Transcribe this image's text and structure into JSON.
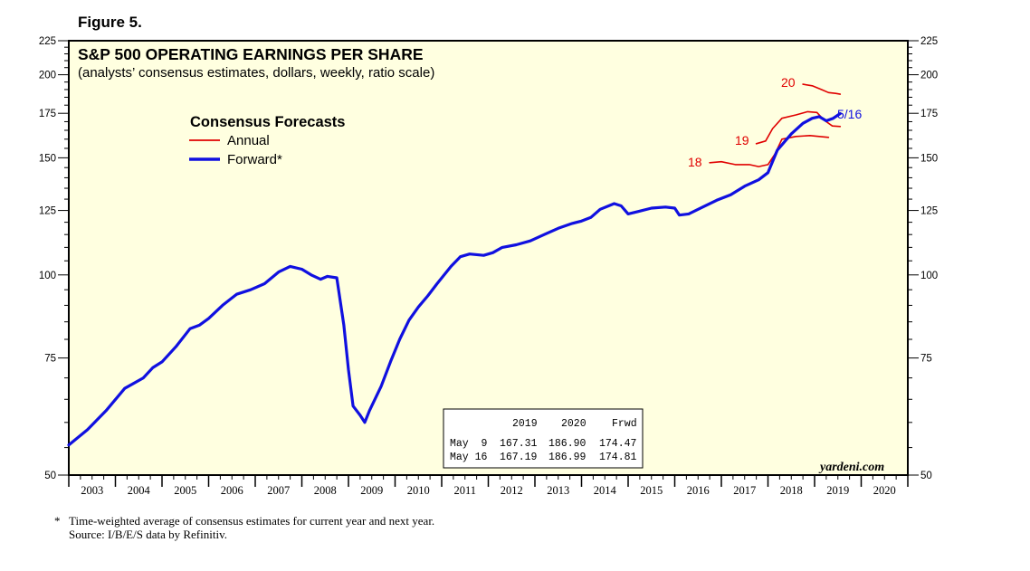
{
  "figure_label": "Figure 5.",
  "chart_data": {
    "type": "line",
    "title": "S&P 500 OPERATING EARNINGS PER SHARE",
    "subtitle": "(analysts’ consensus estimates, dollars, weekly, ratio scale)",
    "scale": "log",
    "ylim": [
      50,
      225
    ],
    "y_ticks": [
      50,
      75,
      100,
      125,
      150,
      175,
      200,
      225
    ],
    "x_range": [
      2003.0,
      2021.0
    ],
    "x_tick_labels": [
      "2003",
      "2004",
      "2005",
      "2006",
      "2007",
      "2008",
      "2009",
      "2010",
      "2011",
      "2012",
      "2013",
      "2014",
      "2015",
      "2016",
      "2017",
      "2018",
      "2019",
      "2020"
    ],
    "legend_title": "Consensus Forecasts",
    "legend": [
      {
        "name": "Annual",
        "color": "#e00000"
      },
      {
        "name": "Forward*",
        "color": "#1010e0"
      }
    ],
    "series": [
      {
        "name": "Forward*",
        "color": "#1010e0",
        "points": [
          [
            2003.0,
            55.5
          ],
          [
            2003.4,
            58.5
          ],
          [
            2003.8,
            62.5
          ],
          [
            2004.2,
            67.5
          ],
          [
            2004.6,
            70
          ],
          [
            2004.8,
            72.5
          ],
          [
            2005.0,
            74
          ],
          [
            2005.3,
            78
          ],
          [
            2005.6,
            83
          ],
          [
            2005.8,
            84
          ],
          [
            2006.0,
            86
          ],
          [
            2006.3,
            90
          ],
          [
            2006.6,
            93.5
          ],
          [
            2006.9,
            95
          ],
          [
            2007.2,
            97
          ],
          [
            2007.5,
            101
          ],
          [
            2007.75,
            103
          ],
          [
            2008.0,
            102
          ],
          [
            2008.2,
            100
          ],
          [
            2008.4,
            98.5
          ],
          [
            2008.55,
            99.5
          ],
          [
            2008.75,
            99
          ],
          [
            2008.9,
            84
          ],
          [
            2009.0,
            72
          ],
          [
            2009.1,
            63.5
          ],
          [
            2009.25,
            61.5
          ],
          [
            2009.35,
            60
          ],
          [
            2009.45,
            62.5
          ],
          [
            2009.7,
            68
          ],
          [
            2009.9,
            74
          ],
          [
            2010.1,
            80
          ],
          [
            2010.3,
            85.5
          ],
          [
            2010.5,
            89.5
          ],
          [
            2010.7,
            93
          ],
          [
            2010.9,
            97
          ],
          [
            2011.2,
            103
          ],
          [
            2011.4,
            106.5
          ],
          [
            2011.6,
            107.5
          ],
          [
            2011.9,
            107
          ],
          [
            2012.1,
            108
          ],
          [
            2012.3,
            110
          ],
          [
            2012.6,
            111
          ],
          [
            2012.9,
            112.5
          ],
          [
            2013.2,
            115
          ],
          [
            2013.5,
            117.5
          ],
          [
            2013.8,
            119.5
          ],
          [
            2014.0,
            120.5
          ],
          [
            2014.2,
            122
          ],
          [
            2014.4,
            125.5
          ],
          [
            2014.7,
            128
          ],
          [
            2014.85,
            127
          ],
          [
            2015.0,
            123.5
          ],
          [
            2015.2,
            124.5
          ],
          [
            2015.5,
            126
          ],
          [
            2015.8,
            126.5
          ],
          [
            2016.0,
            126
          ],
          [
            2016.1,
            123
          ],
          [
            2016.3,
            123.5
          ],
          [
            2016.6,
            126.5
          ],
          [
            2016.9,
            129.5
          ],
          [
            2017.2,
            132
          ],
          [
            2017.5,
            136
          ],
          [
            2017.8,
            139
          ],
          [
            2018.0,
            142.5
          ],
          [
            2018.2,
            154
          ],
          [
            2018.5,
            163
          ],
          [
            2018.75,
            169
          ],
          [
            2018.95,
            172
          ],
          [
            2019.1,
            173
          ],
          [
            2019.25,
            170.5
          ],
          [
            2019.4,
            172
          ],
          [
            2019.55,
            174.81
          ]
        ]
      },
      {
        "name": "18",
        "color": "#e00000",
        "points": [
          [
            2016.75,
            147.5
          ],
          [
            2017.0,
            148
          ],
          [
            2017.3,
            146.5
          ],
          [
            2017.6,
            146.5
          ],
          [
            2017.8,
            145.5
          ],
          [
            2018.0,
            146.5
          ],
          [
            2018.15,
            152
          ],
          [
            2018.3,
            160
          ],
          [
            2018.6,
            161.5
          ],
          [
            2018.9,
            162
          ],
          [
            2019.1,
            161.5
          ],
          [
            2019.3,
            161
          ]
        ]
      },
      {
        "name": "19",
        "color": "#e00000",
        "points": [
          [
            2017.75,
            157.5
          ],
          [
            2017.95,
            159
          ],
          [
            2018.1,
            166
          ],
          [
            2018.3,
            172
          ],
          [
            2018.6,
            174
          ],
          [
            2018.85,
            176
          ],
          [
            2019.05,
            175.5
          ],
          [
            2019.2,
            171
          ],
          [
            2019.38,
            167.5
          ],
          [
            2019.55,
            167.19
          ]
        ]
      },
      {
        "name": "20",
        "color": "#e00000",
        "points": [
          [
            2018.75,
            193.5
          ],
          [
            2018.95,
            192.5
          ],
          [
            2019.15,
            190
          ],
          [
            2019.3,
            188
          ],
          [
            2019.45,
            187.5
          ],
          [
            2019.55,
            186.99
          ]
        ]
      }
    ],
    "series_labels": [
      "18",
      "19",
      "20"
    ],
    "end_label": "5/16",
    "table": {
      "columns": [
        "2019",
        "2020",
        "Frwd"
      ],
      "rows": [
        {
          "date": "May  9",
          "values": [
            "167.31",
            "186.90",
            "174.47"
          ]
        },
        {
          "date": "May 16",
          "values": [
            "167.19",
            "186.99",
            "174.81"
          ]
        }
      ]
    },
    "source_brand": "yardeni.com"
  },
  "footnotes": {
    "star": "*",
    "line1": "Time-weighted average of consensus estimates for current year and next year.",
    "line2": "Source: I/B/E/S data by Refinitiv."
  }
}
